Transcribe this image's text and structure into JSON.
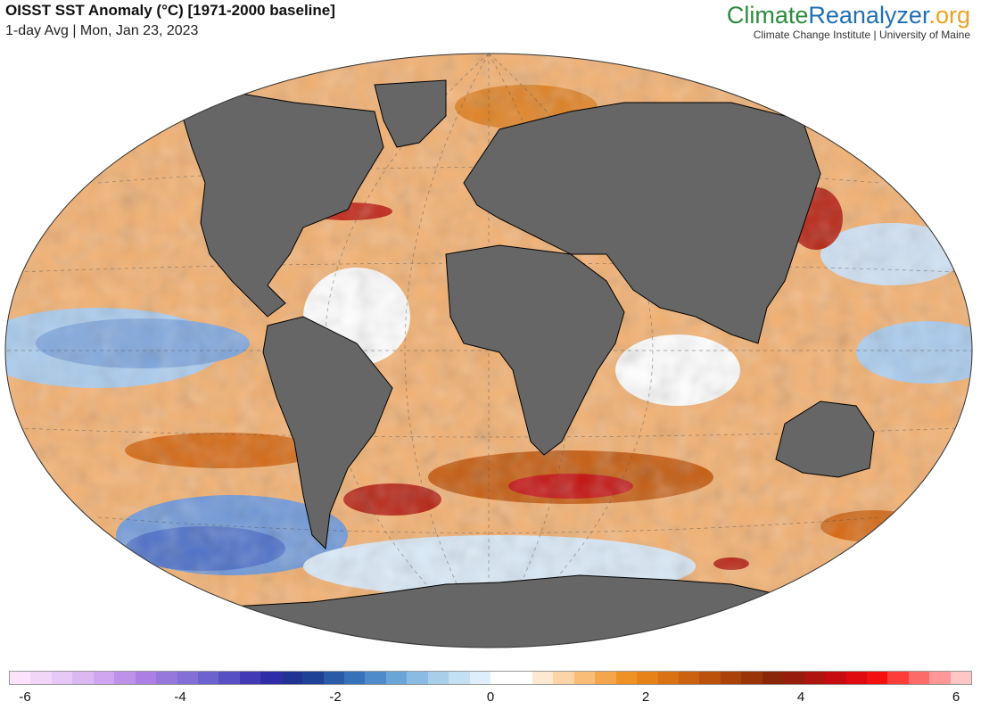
{
  "header": {
    "title": "OISST SST Anomaly (°C) [1971-2000 baseline]",
    "subtitle": "1-day Avg | Mon, Jan 23, 2023"
  },
  "brand": {
    "name_part1": "Climate",
    "name_part2": "Reanalyzer",
    "name_part3": ".org",
    "tagline": "Climate Change Institute | University of Maine",
    "colors": {
      "part1": "#2e8b3d",
      "part2": "#1f6fb5",
      "part3": "#f0a020"
    }
  },
  "map": {
    "projection": "Winkel Tripel",
    "land_color": "#666666",
    "ice_color": "#ffffff",
    "background": "#ffffff"
  },
  "colorbar": {
    "ticks": [
      "-6",
      "-4",
      "-2",
      "0",
      "2",
      "4",
      "6"
    ],
    "min": -6,
    "max": 6,
    "colors": [
      "#fbe4fb",
      "#f1d6f8",
      "#e8c8f6",
      "#dcb8f3",
      "#cfa6ef",
      "#bf92ea",
      "#ab7fe3",
      "#9678dc",
      "#8270d6",
      "#6c63cf",
      "#574fc4",
      "#4239b7",
      "#2f2ca7",
      "#213295",
      "#1e4296",
      "#285aa8",
      "#3871bb",
      "#4e8bcb",
      "#6aa5d8",
      "#8abbe3",
      "#a7cfec",
      "#c3e0f3",
      "#deeefa",
      "#ffffff",
      "#ffffff",
      "#fde8d2",
      "#fcd4a6",
      "#f9bd78",
      "#f5a64d",
      "#ef9226",
      "#e68217",
      "#da7114",
      "#cc6110",
      "#bc510c",
      "#ab420a",
      "#9a3407",
      "#8a2605",
      "#981c0c",
      "#ae1410",
      "#c60c10",
      "#de0a0f",
      "#f2110f",
      "#fd3d38",
      "#fe6a67",
      "#fe9796",
      "#fec6c5"
    ]
  }
}
